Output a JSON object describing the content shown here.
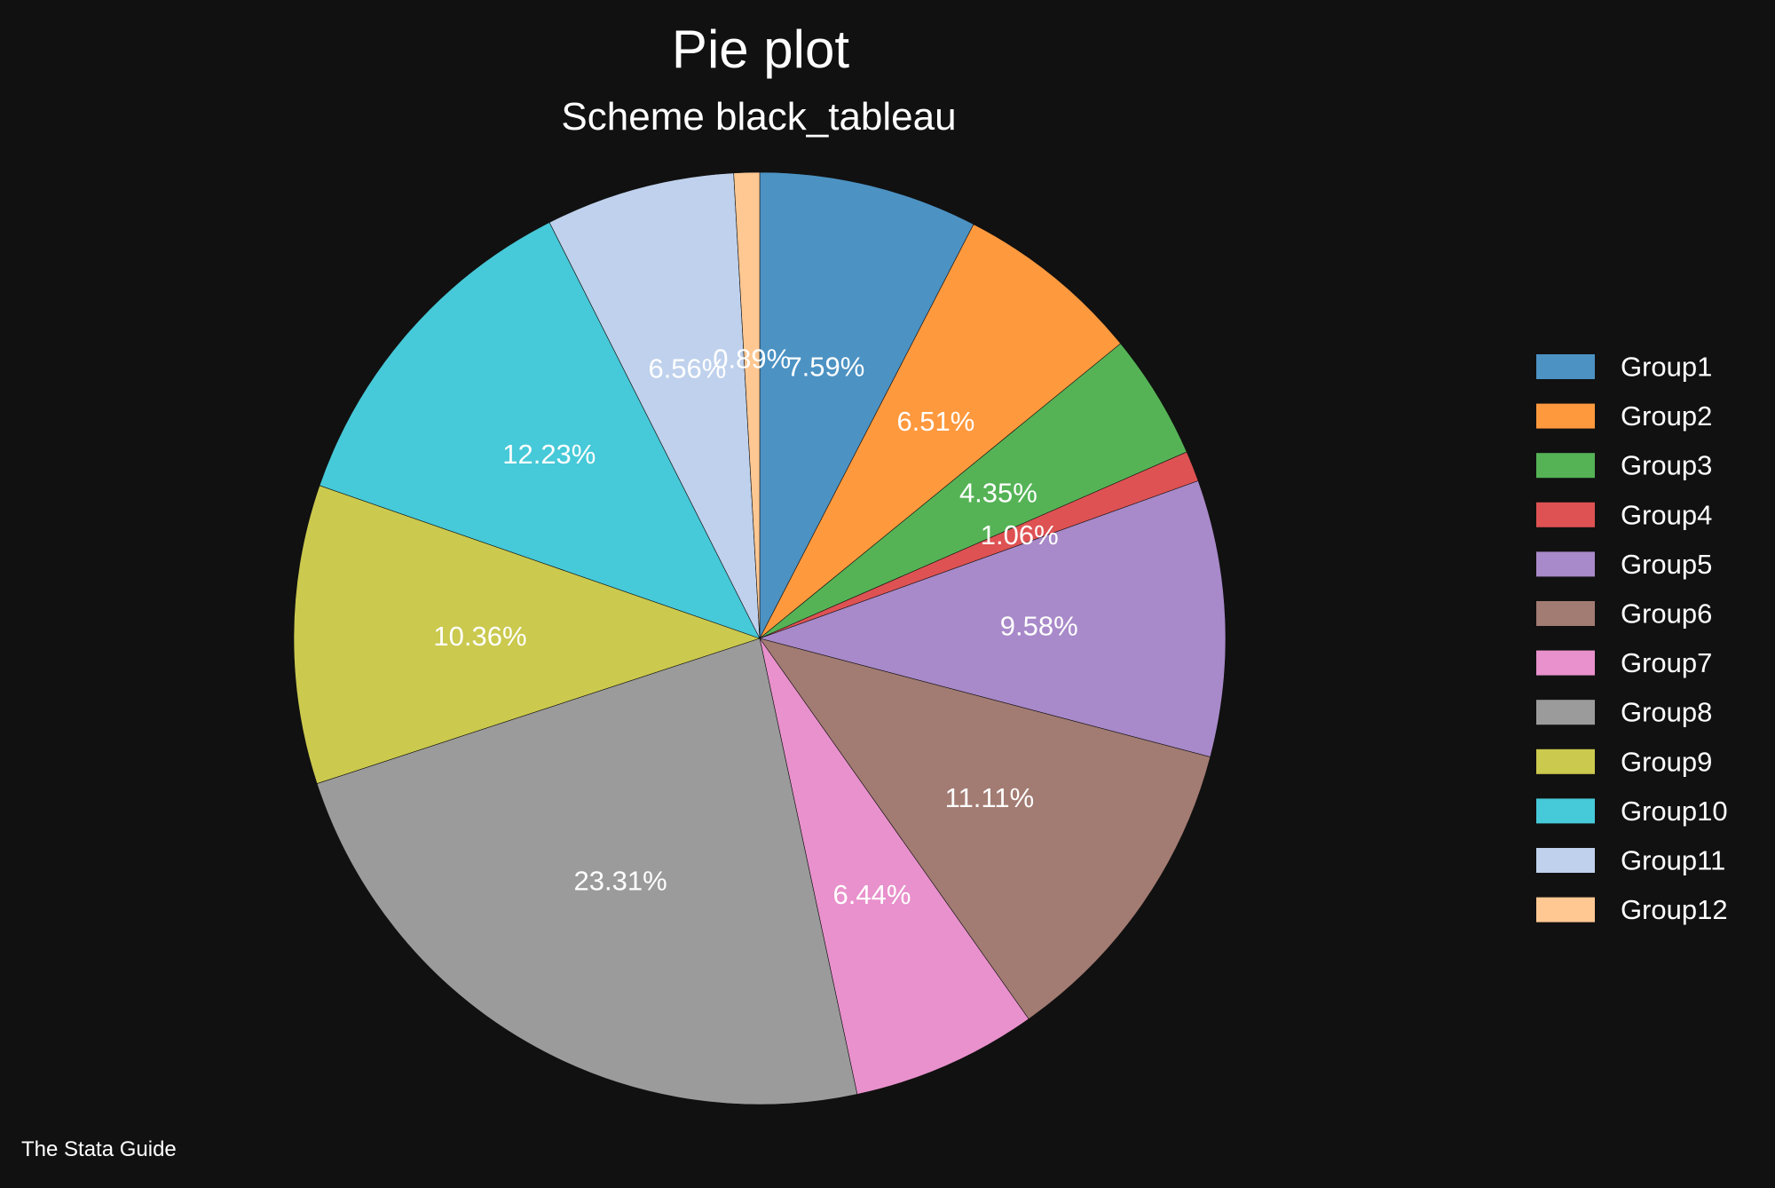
{
  "chart_data": {
    "type": "pie",
    "title": "Pie plot",
    "subtitle": "Scheme black_tableau",
    "note": "The Stata Guide",
    "legend_position": "right",
    "start_angle_deg": 0,
    "direction": "clockwise",
    "slices": [
      {
        "name": "Group1",
        "value": 7.59,
        "label": "7.59%",
        "color": "#4c92c3"
      },
      {
        "name": "Group2",
        "value": 6.51,
        "label": "6.51%",
        "color": "#ff993e"
      },
      {
        "name": "Group3",
        "value": 4.35,
        "label": "4.35%",
        "color": "#55b356"
      },
      {
        "name": "Group4",
        "value": 1.06,
        "label": "1.06%",
        "color": "#de5253"
      },
      {
        "name": "Group5",
        "value": 9.58,
        "label": "9.58%",
        "color": "#a889c9"
      },
      {
        "name": "Group6",
        "value": 11.11,
        "label": "11.11%",
        "color": "#a27b72"
      },
      {
        "name": "Group7",
        "value": 6.44,
        "label": "6.44%",
        "color": "#e891cc"
      },
      {
        "name": "Group8",
        "value": 23.31,
        "label": "23.31%",
        "color": "#9b9b9b"
      },
      {
        "name": "Group9",
        "value": 10.36,
        "label": "10.36%",
        "color": "#cbc94e"
      },
      {
        "name": "Group10",
        "value": 12.23,
        "label": "12.23%",
        "color": "#46c9d8"
      },
      {
        "name": "Group11",
        "value": 6.56,
        "label": "6.56%",
        "color": "#bfd1ec"
      },
      {
        "name": "Group12",
        "value": 0.89,
        "label": "0.89%",
        "color": "#ffc893"
      }
    ]
  }
}
